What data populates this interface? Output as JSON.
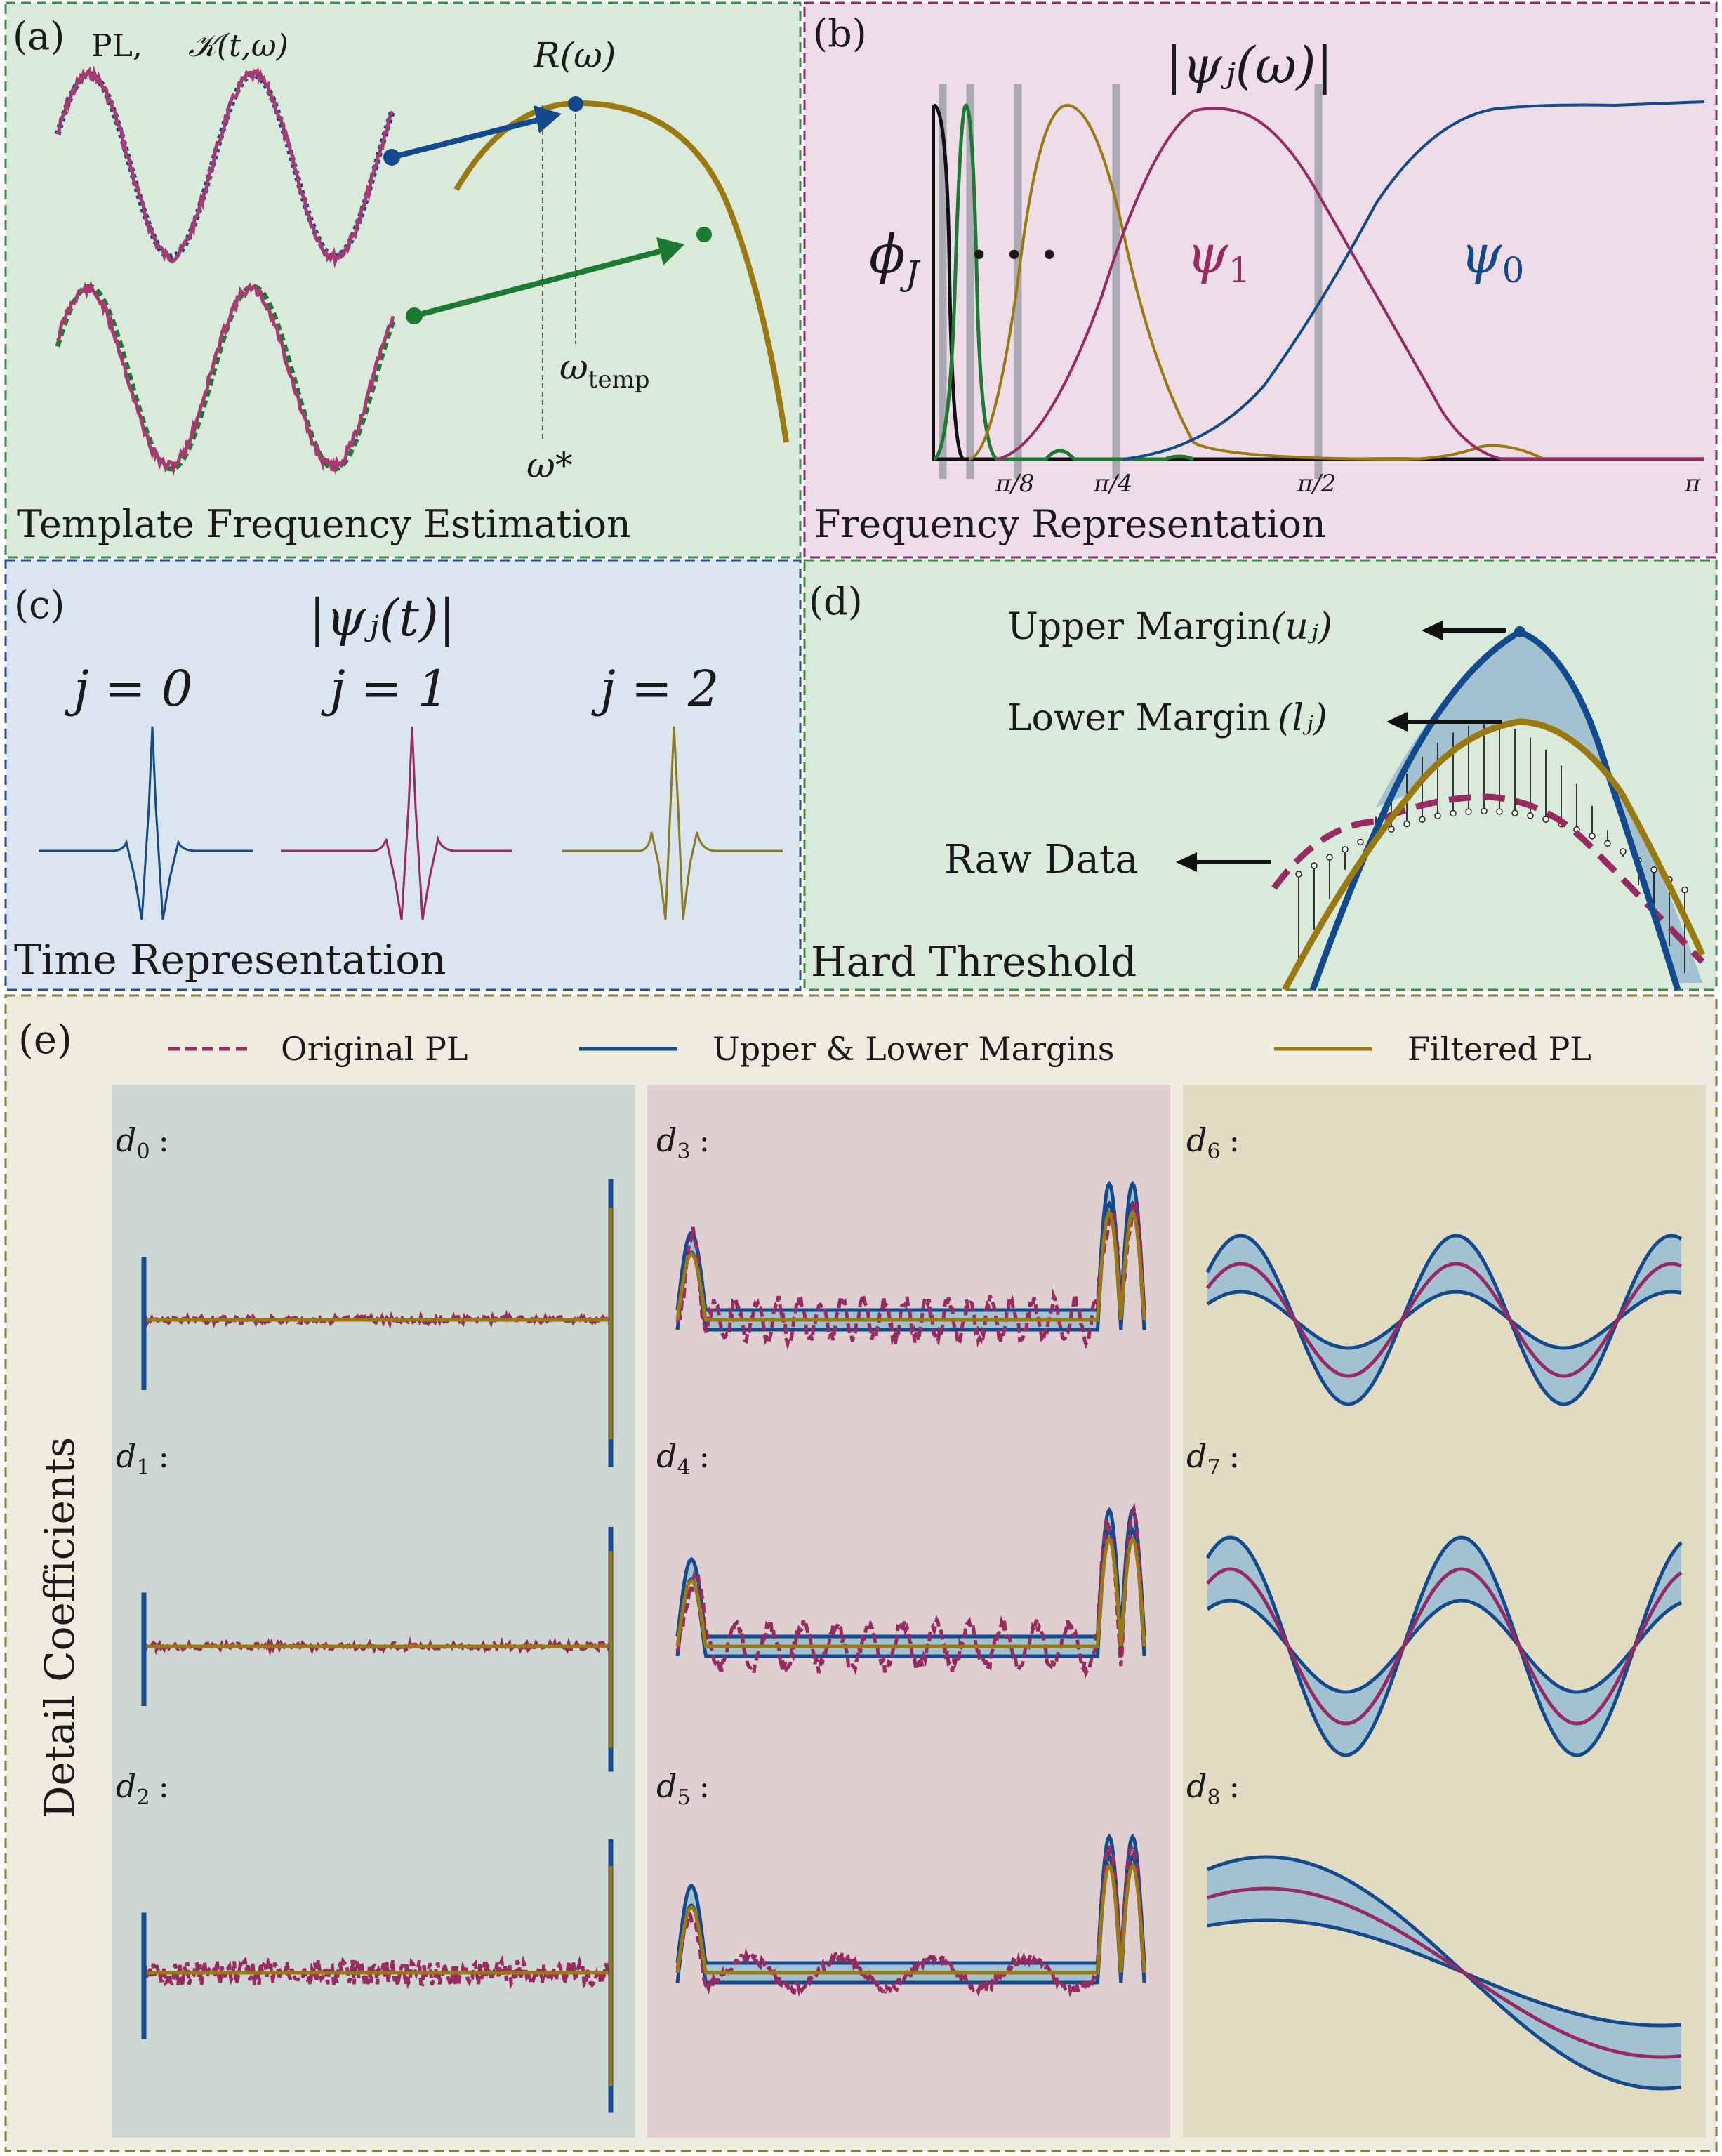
{
  "colors": {
    "blue": "#134a8e",
    "purple": "#982a62",
    "gold": "#9a7a10",
    "green": "#1d7a33",
    "bg_a": "#d9eadb",
    "bg_b": "#eedde8",
    "bg_c": "#dae5ef",
    "bg_d": "#d9eadb",
    "bg_e": "#eeebdf",
    "col1": "#cdd6d1",
    "col2": "#dfcfd0",
    "col3": "#e1dcc1",
    "band": "#a2c2d1"
  },
  "panel_a": {
    "letter": "(a)",
    "pl_label": "PL,",
    "kernel_label": "𝒦(t,ω)",
    "r_label": "R(ω)",
    "omega_temp": "ω",
    "omega_temp_sub": "temp",
    "omega_star": "ω*",
    "caption": "Template Frequency Estimation"
  },
  "panel_b": {
    "letter": "(b)",
    "title": "|ψⱼ(ω)|",
    "phi_label": "ϕ",
    "phi_sub": "J",
    "dots": ". . .",
    "psi1": "ψ",
    "psi1_sub": "1",
    "psi0": "ψ",
    "psi0_sub": "0",
    "ticks": [
      "π/8",
      "π/4",
      "π/2",
      "π"
    ],
    "caption": "Frequency Representation"
  },
  "panel_c": {
    "letter": "(c)",
    "title": "|ψⱼ(t)|",
    "j_labels": [
      "j = 0",
      "j = 1",
      "j = 2"
    ],
    "caption": "Time Representation"
  },
  "panel_d": {
    "letter": "(d)",
    "upper": "Upper Margin",
    "upper_sym": "(uⱼ)",
    "lower": "Lower Margin",
    "lower_sym": "(lⱼ)",
    "raw": "Raw Data",
    "caption": "Hard Threshold"
  },
  "panel_e": {
    "letter": "(e)",
    "legend": [
      "Original PL",
      "Upper & Lower Margins",
      "Filtered PL"
    ],
    "ylabel": "Detail Coefficients",
    "labels": [
      "d",
      "d",
      "d",
      "d",
      "d",
      "d",
      "d",
      "d",
      "d"
    ],
    "subs": [
      "0",
      "1",
      "2",
      "3",
      "4",
      "5",
      "6",
      "7",
      "8"
    ],
    "colon": ":"
  }
}
